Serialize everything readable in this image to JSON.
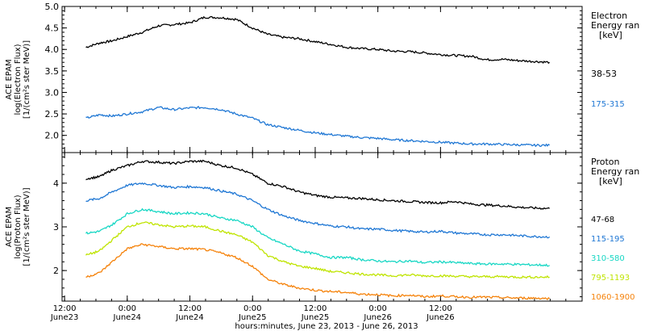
{
  "chart_data": [
    {
      "type": "line",
      "panel": "electron",
      "ylabel": [
        "ACE EPAM",
        "log(Electron Flux)",
        "[1/(cm²s ster MeV)]"
      ],
      "legend_title": [
        "Electron",
        "Energy ran",
        "[keV]"
      ],
      "ylim": [
        1.6,
        5.0
      ],
      "yticks": [
        2.0,
        2.5,
        3.0,
        3.5,
        4.0,
        4.5,
        5.0
      ],
      "ytick_labels": [
        "2.0",
        "2.5",
        "3.0",
        "3.5",
        "4.0",
        "4.5",
        "5.0"
      ],
      "series": [
        {
          "name": "38-53",
          "color": "#000000",
          "x": [
            -0.33,
            -0.22,
            -0.12,
            0.0,
            0.12,
            0.25,
            0.37,
            0.5,
            0.62,
            0.75,
            0.87,
            1.0,
            1.12,
            1.25,
            1.37,
            1.5,
            1.62,
            1.75,
            1.87,
            2.0,
            2.12,
            2.25,
            2.37,
            2.5,
            2.62,
            2.75,
            2.87,
            3.0,
            3.12,
            3.25,
            3.37
          ],
          "y": [
            4.05,
            4.15,
            4.2,
            4.3,
            4.4,
            4.55,
            4.58,
            4.62,
            4.75,
            4.74,
            4.7,
            4.5,
            4.35,
            4.28,
            4.25,
            4.18,
            4.12,
            4.05,
            4.02,
            4.0,
            3.96,
            3.95,
            3.92,
            3.88,
            3.86,
            3.84,
            3.76,
            3.77,
            3.74,
            3.72,
            3.7
          ]
        },
        {
          "name": "175-315",
          "color": "#1f77d4",
          "x": [
            -0.33,
            -0.22,
            -0.12,
            0.0,
            0.12,
            0.25,
            0.37,
            0.5,
            0.62,
            0.75,
            0.87,
            1.0,
            1.12,
            1.25,
            1.37,
            1.5,
            1.62,
            1.75,
            1.87,
            2.0,
            2.12,
            2.25,
            2.37,
            2.5,
            2.62,
            2.75,
            2.87,
            3.0,
            3.12,
            3.25,
            3.37
          ],
          "y": [
            2.4,
            2.48,
            2.45,
            2.5,
            2.55,
            2.65,
            2.6,
            2.64,
            2.65,
            2.6,
            2.5,
            2.4,
            2.25,
            2.18,
            2.12,
            2.06,
            2.02,
            1.98,
            1.95,
            1.93,
            1.9,
            1.88,
            1.86,
            1.84,
            1.82,
            1.8,
            1.8,
            1.79,
            1.78,
            1.77,
            1.77
          ]
        }
      ]
    },
    {
      "type": "line",
      "panel": "proton",
      "ylabel": [
        "ACE EPAM",
        "log(Proton Flux)",
        "[1/(cm²s ster MeV)]"
      ],
      "legend_title": [
        "Proton",
        "Energy ran",
        "[keV]"
      ],
      "ylim": [
        1.3,
        4.7
      ],
      "yticks": [
        2,
        3,
        4
      ],
      "ytick_labels": [
        "2",
        "3",
        "4"
      ],
      "series": [
        {
          "name": "47-68",
          "color": "#000000",
          "x": [
            -0.33,
            -0.22,
            -0.12,
            0.0,
            0.12,
            0.25,
            0.37,
            0.5,
            0.62,
            0.75,
            0.87,
            1.0,
            1.12,
            1.25,
            1.37,
            1.5,
            1.62,
            1.75,
            1.87,
            2.0,
            2.12,
            2.25,
            2.37,
            2.5,
            2.62,
            2.75,
            2.87,
            3.0,
            3.12,
            3.25,
            3.37
          ],
          "y": [
            4.1,
            4.15,
            4.3,
            4.4,
            4.5,
            4.48,
            4.45,
            4.5,
            4.5,
            4.4,
            4.35,
            4.2,
            4.0,
            3.92,
            3.8,
            3.72,
            3.68,
            3.66,
            3.65,
            3.62,
            3.6,
            3.58,
            3.56,
            3.55,
            3.58,
            3.52,
            3.5,
            3.48,
            3.45,
            3.43,
            3.42
          ]
        },
        {
          "name": "115-195",
          "color": "#1f77d4",
          "x": [
            -0.33,
            -0.22,
            -0.12,
            0.0,
            0.12,
            0.25,
            0.37,
            0.5,
            0.62,
            0.75,
            0.87,
            1.0,
            1.12,
            1.25,
            1.37,
            1.5,
            1.62,
            1.75,
            1.87,
            2.0,
            2.12,
            2.25,
            2.37,
            2.5,
            2.62,
            2.75,
            2.87,
            3.0,
            3.12,
            3.25,
            3.37
          ],
          "y": [
            3.6,
            3.65,
            3.8,
            3.95,
            4.0,
            3.95,
            3.9,
            3.92,
            3.9,
            3.82,
            3.75,
            3.6,
            3.4,
            3.25,
            3.15,
            3.08,
            3.02,
            3.0,
            2.95,
            2.95,
            2.92,
            2.9,
            2.88,
            2.9,
            2.86,
            2.84,
            2.82,
            2.82,
            2.8,
            2.78,
            2.77
          ]
        },
        {
          "name": "310-580",
          "color": "#17d7c4",
          "x": [
            -0.33,
            -0.22,
            -0.12,
            0.0,
            0.12,
            0.25,
            0.37,
            0.5,
            0.62,
            0.75,
            0.87,
            1.0,
            1.12,
            1.25,
            1.37,
            1.5,
            1.62,
            1.75,
            1.87,
            2.0,
            2.12,
            2.25,
            2.37,
            2.5,
            2.62,
            2.75,
            2.87,
            3.0,
            3.12,
            3.25,
            3.37
          ],
          "y": [
            2.85,
            2.9,
            3.05,
            3.3,
            3.4,
            3.35,
            3.3,
            3.32,
            3.3,
            3.2,
            3.15,
            3.0,
            2.75,
            2.6,
            2.45,
            2.38,
            2.3,
            2.3,
            2.25,
            2.22,
            2.2,
            2.22,
            2.18,
            2.2,
            2.18,
            2.16,
            2.15,
            2.15,
            2.14,
            2.13,
            2.12
          ]
        },
        {
          "name": "795-1193",
          "color": "#bfe400",
          "x": [
            -0.33,
            -0.22,
            -0.12,
            0.0,
            0.12,
            0.25,
            0.37,
            0.5,
            0.62,
            0.75,
            0.87,
            1.0,
            1.12,
            1.25,
            1.37,
            1.5,
            1.62,
            1.75,
            1.87,
            2.0,
            2.12,
            2.25,
            2.37,
            2.5,
            2.62,
            2.75,
            2.87,
            3.0,
            3.12,
            3.25,
            3.37
          ],
          "y": [
            2.35,
            2.45,
            2.7,
            3.0,
            3.1,
            3.05,
            3.0,
            3.02,
            3.0,
            2.9,
            2.82,
            2.65,
            2.35,
            2.2,
            2.1,
            2.05,
            1.98,
            1.95,
            1.92,
            1.9,
            1.88,
            1.9,
            1.88,
            1.88,
            1.87,
            1.86,
            1.86,
            1.86,
            1.85,
            1.85,
            1.85
          ]
        },
        {
          "name": "1060-1900",
          "color": "#f5820a",
          "x": [
            -0.33,
            -0.22,
            -0.12,
            0.0,
            0.12,
            0.25,
            0.37,
            0.5,
            0.62,
            0.75,
            0.87,
            1.0,
            1.12,
            1.25,
            1.37,
            1.5,
            1.62,
            1.75,
            1.87,
            2.0,
            2.12,
            2.25,
            2.37,
            2.5,
            2.62,
            2.75,
            2.87,
            3.0,
            3.12,
            3.25,
            3.37
          ],
          "y": [
            1.85,
            1.95,
            2.2,
            2.5,
            2.6,
            2.55,
            2.5,
            2.5,
            2.48,
            2.4,
            2.3,
            2.1,
            1.8,
            1.68,
            1.6,
            1.55,
            1.52,
            1.5,
            1.46,
            1.45,
            1.42,
            1.44,
            1.4,
            1.42,
            1.4,
            1.39,
            1.39,
            1.38,
            1.37,
            1.37,
            1.36
          ]
        }
      ]
    }
  ],
  "x_axis": {
    "range": [
      -0.52,
      3.63
    ],
    "ticks": [
      {
        "x": -0.5,
        "time": "12:00",
        "date": "June23"
      },
      {
        "x": 0.0,
        "time": "0:00",
        "date": "June24"
      },
      {
        "x": 0.5,
        "time": "12:00",
        "date": "June24"
      },
      {
        "x": 1.0,
        "time": "0:00",
        "date": "June25"
      },
      {
        "x": 1.5,
        "time": "12:00",
        "date": "June25"
      },
      {
        "x": 2.0,
        "time": "0:00",
        "date": "June26"
      },
      {
        "x": 2.5,
        "time": "12:00",
        "date": "June26"
      }
    ],
    "label": "hours:minutes, June 23, 2013 - June 26, 2013"
  }
}
